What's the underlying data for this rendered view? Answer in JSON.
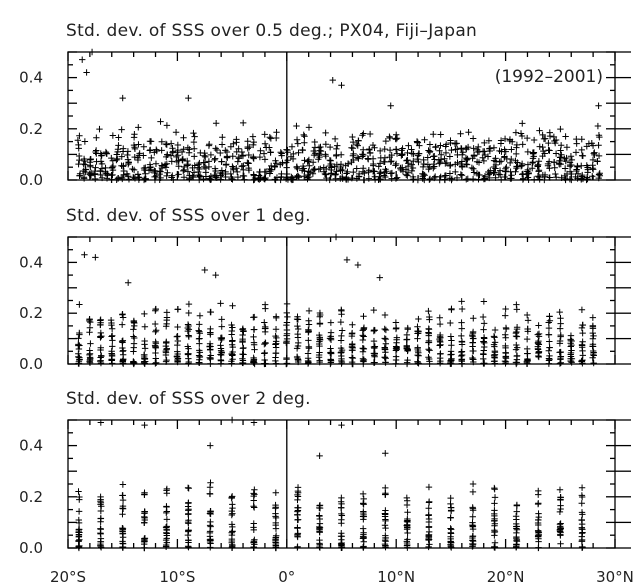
{
  "chart_data": [
    {
      "type": "scatter",
      "title": "Std. dev. of SSS over 0.5 deg.; PX04, Fiji–Japan",
      "annotation": "(1992–2001)",
      "marker": "+",
      "bin_deg": 0.5,
      "xlim": [
        -20,
        30
      ],
      "ylim": [
        0,
        0.5
      ],
      "yticks": [
        "0.0",
        "0.2",
        "0.4"
      ],
      "xticks": [],
      "x_unit": "degrees latitude (negative = S)",
      "y_unit": "psu",
      "max_outliers": [
        [
          -18.7,
          0.47
        ],
        [
          -18.3,
          0.42
        ],
        [
          -17.8,
          0.5
        ],
        [
          -15,
          0.32
        ],
        [
          -9,
          0.32
        ],
        [
          4.2,
          0.39
        ],
        [
          5,
          0.37
        ],
        [
          9.5,
          0.29
        ],
        [
          28.5,
          0.29
        ]
      ],
      "typical_y_range": [
        0.0,
        0.15
      ]
    },
    {
      "type": "scatter",
      "title": "Std. dev. of SSS over 1 deg.",
      "marker": "+",
      "bin_deg": 1,
      "xlim": [
        -20,
        30
      ],
      "ylim": [
        0,
        0.5
      ],
      "yticks": [
        "0.0",
        "0.2",
        "0.4"
      ],
      "xticks": [],
      "x_unit": "degrees latitude (negative = S)",
      "y_unit": "psu",
      "max_outliers": [
        [
          -18.5,
          0.43
        ],
        [
          -17.5,
          0.42
        ],
        [
          -14.5,
          0.32
        ],
        [
          -7.5,
          0.37
        ],
        [
          -6.5,
          0.35
        ],
        [
          4.5,
          0.5
        ],
        [
          5.5,
          0.41
        ],
        [
          6.5,
          0.39
        ],
        [
          8.5,
          0.34
        ]
      ],
      "typical_y_range": [
        0.0,
        0.17
      ]
    },
    {
      "type": "scatter",
      "title": "Std. dev. of SSS over 2 deg.",
      "marker": "+",
      "bin_deg": 2,
      "xlim": [
        -20,
        30
      ],
      "ylim": [
        0,
        0.5
      ],
      "yticks": [
        "0.0",
        "0.2",
        "0.4"
      ],
      "xticks": [
        "20°S",
        "10°S",
        "0°",
        "10°N",
        "20°N",
        "30°N"
      ],
      "x_unit": "degrees latitude (negative = S)",
      "y_unit": "psu",
      "max_outliers": [
        [
          -17,
          0.49
        ],
        [
          -13,
          0.48
        ],
        [
          -7,
          0.4
        ],
        [
          -5,
          0.5
        ],
        [
          -3,
          0.49
        ],
        [
          3,
          0.36
        ],
        [
          5,
          0.48
        ],
        [
          9,
          0.37
        ]
      ],
      "typical_y_range": [
        0.0,
        0.2
      ]
    }
  ]
}
